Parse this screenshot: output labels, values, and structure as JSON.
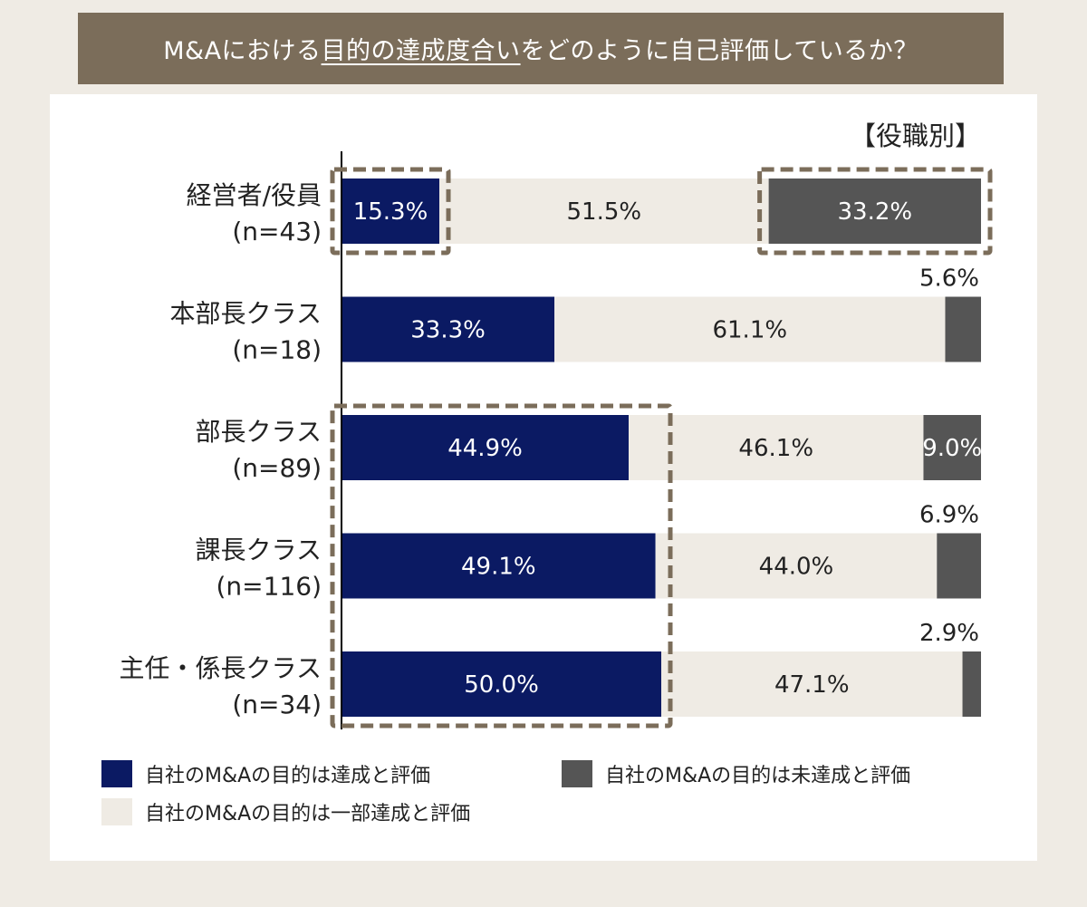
{
  "header": {
    "title_pre": "M&Aにおける",
    "title_underlined": "目的の達成度合い",
    "title_post": "をどのように自己評価しているか？"
  },
  "chart_data": {
    "type": "bar",
    "stacked": true,
    "orientation": "horizontal",
    "subtitle": "【役職別】",
    "categories": [
      {
        "name": "経営者/役員",
        "n": "(n=43)"
      },
      {
        "name": "本部長クラス",
        "n": "(n=18)"
      },
      {
        "name": "部長クラス",
        "n": "(n=89)"
      },
      {
        "name": "課長クラス",
        "n": "(n=116)"
      },
      {
        "name": "主任・係長クラス",
        "n": "(n=34)"
      }
    ],
    "series": [
      {
        "name": "自社のM&Aの目的は達成と評価",
        "color": "#0b1a63",
        "values": [
          15.3,
          33.3,
          44.9,
          49.1,
          50.0
        ],
        "labels": [
          "15.3%",
          "33.3%",
          "44.9%",
          "49.1%",
          "50.0%"
        ]
      },
      {
        "name": "自社のM&Aの目的は一部達成と評価",
        "color": "#efebe4",
        "values": [
          51.5,
          61.1,
          46.1,
          44.0,
          47.1
        ],
        "labels": [
          "51.5%",
          "61.1%",
          "46.1%",
          "44.0%",
          "47.1%"
        ]
      },
      {
        "name": "自社のM&Aの目的は未達成と評価",
        "color": "#555555",
        "values": [
          33.2,
          5.6,
          9.0,
          6.9,
          2.9
        ],
        "labels": [
          "33.2%",
          "5.6%",
          "9.0%",
          "6.9%",
          "2.9%"
        ]
      }
    ],
    "xlim": [
      0,
      100
    ],
    "highlights": [
      {
        "rows": [
          0
        ],
        "series": 0
      },
      {
        "rows": [
          0
        ],
        "series": 2
      },
      {
        "rows": [
          2,
          3,
          4
        ],
        "series": 0
      }
    ]
  }
}
